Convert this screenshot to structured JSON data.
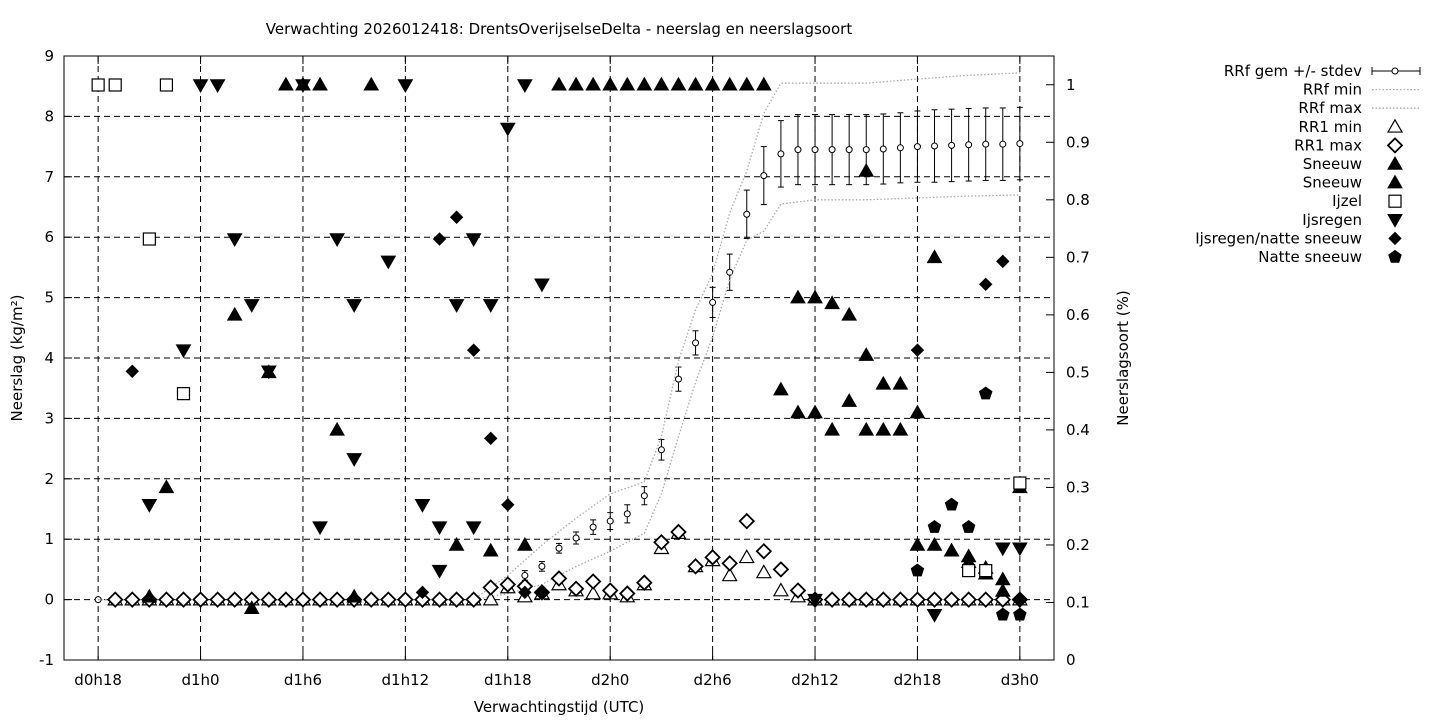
{
  "chart_data": {
    "type": "scatter",
    "title": "Verwachting 2026012418: DrentsOverijselseDelta - neerslag en neerslagsoort",
    "xlabel": "Verwachtingstijd (UTC)",
    "ylabel": "Neerslag (kg/m²)",
    "y2label": "Neerslagsoort (%)",
    "x_unit": "hours since d0h18",
    "xlim": [
      -2,
      56
    ],
    "ylim": [
      -1,
      9
    ],
    "y2lim": [
      0,
      1.05
    ],
    "x_ticks": [
      {
        "x": 0,
        "label": "d0h18"
      },
      {
        "x": 6,
        "label": "d1h0"
      },
      {
        "x": 12,
        "label": "d1h6"
      },
      {
        "x": 18,
        "label": "d1h12"
      },
      {
        "x": 24,
        "label": "d1h18"
      },
      {
        "x": 30,
        "label": "d2h0"
      },
      {
        "x": 36,
        "label": "d2h6"
      },
      {
        "x": 42,
        "label": "d2h12"
      },
      {
        "x": 48,
        "label": "d2h18"
      },
      {
        "x": 54,
        "label": "d3h0"
      }
    ],
    "y_ticks": [
      -1,
      0,
      1,
      2,
      3,
      4,
      5,
      6,
      7,
      8,
      9
    ],
    "y2_ticks": [
      0,
      0.1,
      0.2,
      0.3,
      0.4,
      0.5,
      0.6,
      0.7,
      0.8,
      0.9,
      1
    ],
    "grid": true,
    "legend_position": "outside-right",
    "series": [
      {
        "name": "RRf gem +/- stdev",
        "marker": "circle-errorbar",
        "axis": "y",
        "x": [
          0,
          1,
          2,
          3,
          4,
          5,
          6,
          7,
          8,
          9,
          10,
          11,
          12,
          13,
          14,
          15,
          16,
          17,
          18,
          19,
          20,
          21,
          22,
          23,
          24,
          25,
          26,
          27,
          28,
          29,
          30,
          31,
          32,
          33,
          34,
          35,
          36,
          37,
          38,
          39,
          40,
          41,
          42,
          43,
          44,
          45,
          46,
          47,
          48,
          49,
          50,
          51,
          52,
          53,
          54
        ],
        "y": [
          0,
          0,
          0,
          0,
          0,
          0,
          0,
          0,
          0,
          0,
          0,
          0,
          0,
          0,
          0,
          0,
          0,
          0,
          0,
          0,
          0,
          0,
          0,
          0.02,
          0.25,
          0.4,
          0.55,
          0.85,
          1.02,
          1.2,
          1.3,
          1.42,
          1.72,
          2.48,
          3.65,
          4.25,
          4.92,
          5.42,
          6.38,
          7.02,
          7.38,
          7.45,
          7.45,
          7.45,
          7.45,
          7.45,
          7.46,
          7.48,
          7.5,
          7.51,
          7.52,
          7.53,
          7.54,
          7.54,
          7.55
        ],
        "err": [
          0,
          0,
          0,
          0,
          0,
          0,
          0,
          0,
          0,
          0,
          0,
          0,
          0,
          0,
          0,
          0,
          0,
          0,
          0,
          0,
          0,
          0,
          0,
          0.03,
          0.08,
          0.08,
          0.08,
          0.08,
          0.1,
          0.12,
          0.14,
          0.15,
          0.15,
          0.17,
          0.2,
          0.2,
          0.25,
          0.3,
          0.4,
          0.48,
          0.55,
          0.58,
          0.58,
          0.58,
          0.58,
          0.58,
          0.58,
          0.58,
          0.59,
          0.6,
          0.6,
          0.6,
          0.6,
          0.6,
          0.6
        ]
      },
      {
        "name": "RRf min",
        "marker": "dotted-line",
        "axis": "y",
        "x": [
          0,
          6,
          12,
          18,
          22,
          24,
          26,
          28,
          30,
          32,
          33,
          34,
          35,
          36,
          37,
          38,
          39,
          40,
          42,
          45,
          48,
          51,
          54
        ],
        "y": [
          0,
          0,
          0,
          0,
          0,
          0.1,
          0.25,
          0.55,
          0.8,
          1.1,
          1.75,
          2.7,
          3.6,
          4.35,
          5.3,
          5.95,
          6.1,
          6.55,
          6.62,
          6.62,
          6.65,
          6.68,
          6.7
        ]
      },
      {
        "name": "RRf max",
        "marker": "dotted-line",
        "axis": "y",
        "x": [
          0,
          6,
          12,
          18,
          22,
          24,
          26,
          28,
          30,
          32,
          33,
          34,
          35,
          36,
          37,
          38,
          39,
          40,
          42,
          45,
          48,
          51,
          54
        ],
        "y": [
          0,
          0,
          0,
          0,
          0,
          0.4,
          0.9,
          1.35,
          1.75,
          1.95,
          2.7,
          3.95,
          4.8,
          5.4,
          6.4,
          7.1,
          8.05,
          8.55,
          8.55,
          8.55,
          8.62,
          8.68,
          8.72
        ]
      },
      {
        "name": "RR1 min",
        "marker": "triangle-up-open",
        "axis": "y",
        "x": [
          1,
          2,
          3,
          4,
          5,
          6,
          7,
          8,
          9,
          10,
          11,
          12,
          13,
          14,
          15,
          16,
          17,
          18,
          19,
          20,
          21,
          22,
          23,
          24,
          25,
          26,
          27,
          28,
          29,
          30,
          31,
          32,
          33,
          34,
          35,
          36,
          37,
          38,
          39,
          40,
          41,
          42,
          43,
          44,
          45,
          46,
          47,
          48,
          49,
          50,
          51,
          52,
          53,
          54
        ],
        "y": [
          0,
          0,
          0,
          0,
          0,
          0,
          0,
          0,
          0,
          0,
          0,
          0,
          0,
          0,
          0,
          0,
          0,
          0,
          0,
          0,
          0,
          0,
          0,
          0.2,
          0.05,
          0.1,
          0.25,
          0.15,
          0.1,
          0.1,
          0.05,
          0.25,
          0.85,
          1.1,
          0.55,
          0.65,
          0.4,
          0.7,
          0.45,
          0.15,
          0.05,
          0,
          0,
          0,
          0,
          0,
          0,
          0,
          0,
          0,
          0,
          0,
          0,
          0
        ]
      },
      {
        "name": "RR1 max",
        "marker": "diamond-open",
        "axis": "y",
        "x": [
          1,
          2,
          3,
          4,
          5,
          6,
          7,
          8,
          9,
          10,
          11,
          12,
          13,
          14,
          15,
          16,
          17,
          18,
          19,
          20,
          21,
          22,
          23,
          24,
          25,
          26,
          27,
          28,
          29,
          30,
          31,
          32,
          33,
          34,
          35,
          36,
          37,
          38,
          39,
          40,
          41,
          42,
          43,
          44,
          45,
          46,
          47,
          48,
          49,
          50,
          51,
          52,
          53,
          54
        ],
        "y": [
          0,
          0,
          0,
          0,
          0,
          0,
          0,
          0,
          0,
          0,
          0,
          0,
          0,
          0,
          0,
          0,
          0,
          0,
          0,
          0,
          0,
          0,
          0.2,
          0.25,
          0.22,
          0.12,
          0.35,
          0.18,
          0.3,
          0.15,
          0.1,
          0.28,
          0.95,
          1.12,
          0.55,
          0.7,
          0.6,
          1.3,
          0.8,
          0.5,
          0.15,
          0,
          0,
          0,
          0,
          0,
          0,
          0,
          0,
          0,
          0,
          0,
          0,
          0
        ]
      },
      {
        "name": "Sneeuw",
        "marker": "triangle-up-filled",
        "axis": "y2",
        "x": [
          11,
          12,
          13,
          16,
          27,
          28,
          29,
          30,
          31,
          32,
          33,
          34,
          35,
          36,
          37,
          38,
          39,
          45,
          8,
          9,
          3,
          15,
          49,
          10,
          14,
          4,
          21,
          25,
          41,
          42,
          43,
          44,
          45,
          46,
          47,
          48,
          54,
          23,
          50,
          51,
          52,
          53
        ],
        "y": [
          1,
          1,
          1,
          1,
          1,
          1,
          1,
          1,
          1,
          1,
          1,
          1,
          1,
          1,
          1,
          1,
          1,
          0.85,
          0.6,
          0.09,
          0.11,
          0.11,
          0.7,
          0.5,
          0.4,
          0.3,
          0.2,
          0.2,
          0.63,
          0.63,
          0.62,
          0.6,
          0.53,
          0.48,
          0.48,
          0.43,
          0.3,
          0.19,
          0.19,
          0.18,
          0.16,
          0.14
        ]
      },
      {
        "name": "Sneeuw",
        "marker": "triangle-up-filled",
        "axis": "y2",
        "x": [
          40,
          41,
          42,
          43,
          44,
          45,
          46,
          47,
          48,
          49,
          50,
          51,
          52,
          53
        ],
        "y": [
          0.47,
          0.43,
          0.43,
          0.4,
          0.45,
          0.4,
          0.4,
          0.4,
          0.2,
          0.2,
          0.19,
          0.17,
          0.15,
          0.12
        ]
      },
      {
        "name": "Ijzel",
        "marker": "square-open",
        "axis": "y",
        "x": [
          0,
          1,
          4,
          3,
          5,
          51,
          52,
          54
        ],
        "y": [
          8.52,
          8.52,
          8.52,
          5.97,
          3.41,
          0.48,
          0.48,
          1.93
        ]
      },
      {
        "name": "Ijsregen",
        "marker": "triangle-down-filled",
        "axis": "y",
        "x": [
          6,
          7,
          12,
          18,
          25,
          24,
          8,
          14,
          17,
          15,
          19,
          20,
          22,
          23,
          5,
          10,
          3,
          13,
          9,
          15,
          20,
          21,
          26,
          22,
          42,
          49,
          54,
          53
        ],
        "y": [
          8.52,
          8.52,
          8.52,
          8.52,
          8.52,
          7.8,
          5.97,
          5.97,
          5.6,
          4.88,
          1.57,
          1.2,
          1.2,
          4.88,
          4.13,
          3.78,
          1.57,
          1.2,
          4.88,
          2.33,
          0.48,
          4.88,
          5.22,
          5.97,
          0,
          -0.25,
          0.85,
          0.85
        ]
      },
      {
        "name": "Ijsregen/natte sneeuw",
        "marker": "diamond-filled",
        "axis": "y",
        "x": [
          2,
          20,
          21,
          22,
          23,
          24,
          25,
          48,
          52,
          53,
          54,
          19,
          26
        ],
        "y": [
          3.78,
          5.97,
          6.33,
          4.13,
          2.67,
          1.57,
          0.12,
          4.13,
          5.22,
          5.6,
          0,
          0.12,
          0.12
        ]
      },
      {
        "name": "Natte sneeuw",
        "marker": "pentagon-filled",
        "axis": "y",
        "x": [
          48,
          49,
          50,
          51,
          52,
          53,
          54
        ],
        "y": [
          0.48,
          1.2,
          1.57,
          1.2,
          3.41,
          -0.25,
          -0.25
        ]
      }
    ]
  }
}
